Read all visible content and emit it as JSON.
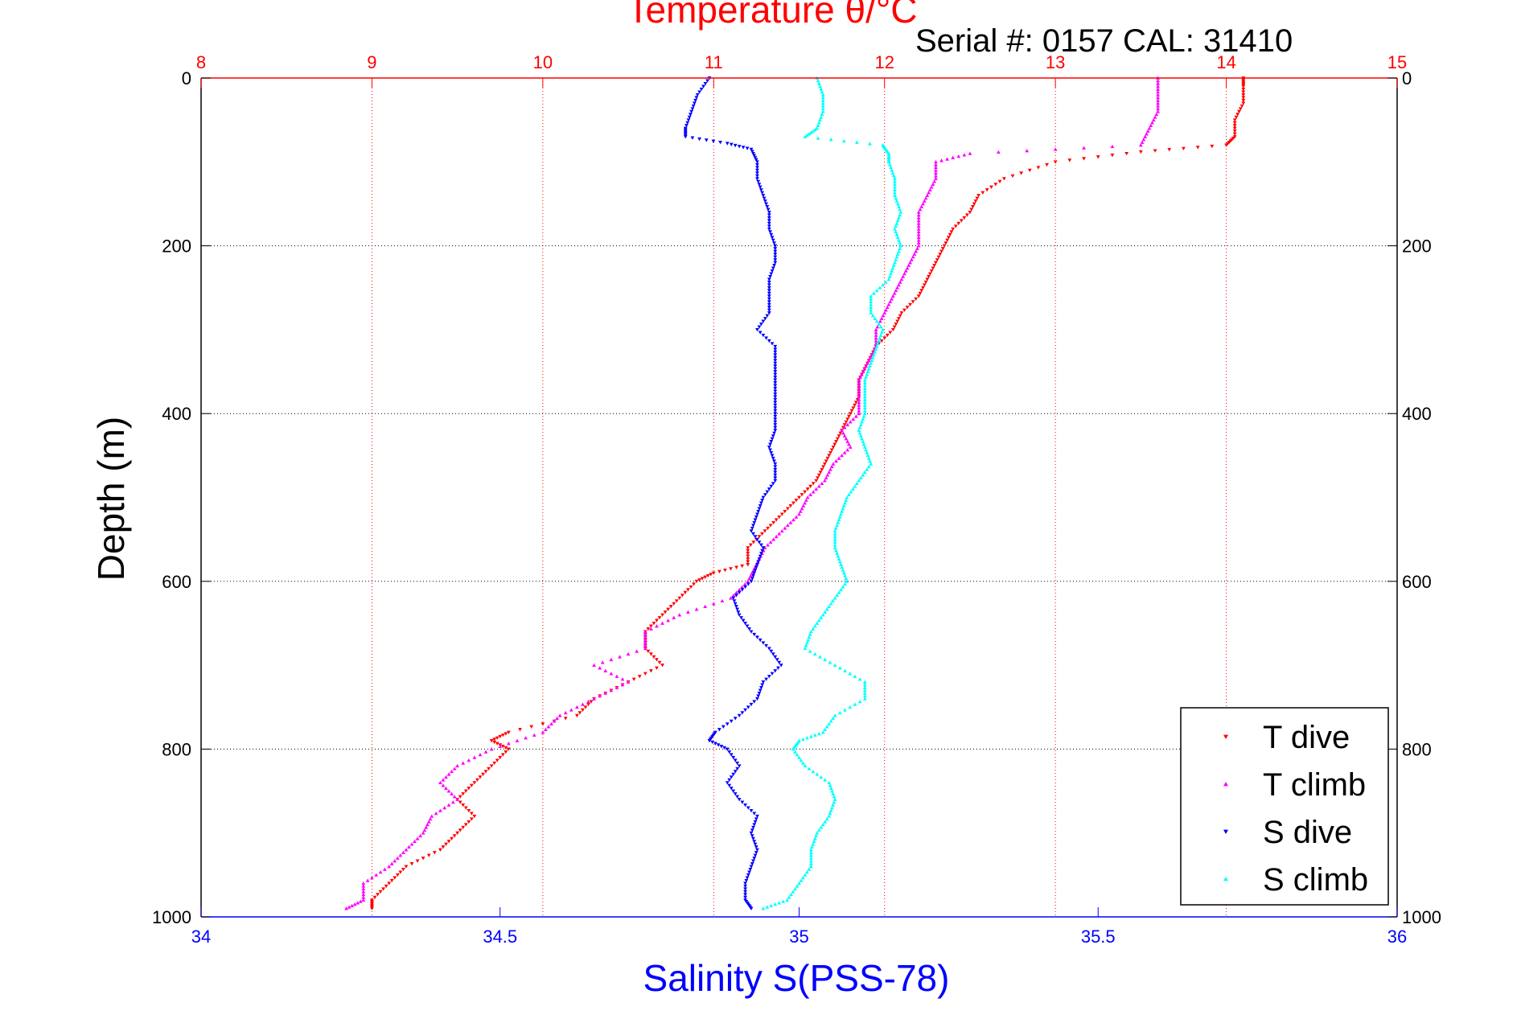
{
  "chart_data": {
    "type": "scatter",
    "title": "Temperature θ/°C",
    "subtitle": "Serial #: 0157  CAL: 31410",
    "xlabel": "Salinity S(PSS-78)",
    "ylabel": "Depth (m)",
    "x_top": {
      "label": "Temperature θ/°C",
      "lim": [
        8,
        15
      ],
      "ticks": [
        8,
        9,
        10,
        11,
        12,
        13,
        14,
        15
      ]
    },
    "x_bottom": {
      "label": "Salinity S(PSS-78)",
      "lim": [
        34,
        36
      ],
      "ticks": [
        "34",
        "34.5",
        "35",
        "35.5",
        "36"
      ]
    },
    "y": {
      "label": "Depth (m)",
      "lim": [
        0,
        1000
      ],
      "reversed": true,
      "ticks": [
        0,
        200,
        400,
        600,
        800,
        1000
      ]
    },
    "grid": true,
    "legend": {
      "placement": "bottom-right"
    },
    "colors": {
      "temp_axis": "#ff0000",
      "sal_axis": "#0000ff",
      "grid_temp": "#ff0000",
      "grid_depth": "#000000"
    },
    "series": [
      {
        "name": "T dive",
        "axis": "temperature",
        "color": "#ff0000",
        "marker": "triangle-down",
        "points": [
          [
            14.1,
            0
          ],
          [
            14.1,
            10
          ],
          [
            14.1,
            30
          ],
          [
            14.05,
            50
          ],
          [
            14.05,
            70
          ],
          [
            14.0,
            80
          ],
          [
            13.5,
            88
          ],
          [
            13.0,
            100
          ],
          [
            12.7,
            120
          ],
          [
            12.55,
            140
          ],
          [
            12.5,
            160
          ],
          [
            12.4,
            180
          ],
          [
            12.35,
            200
          ],
          [
            12.3,
            220
          ],
          [
            12.25,
            240
          ],
          [
            12.2,
            260
          ],
          [
            12.1,
            280
          ],
          [
            12.05,
            300
          ],
          [
            11.95,
            320
          ],
          [
            11.9,
            340
          ],
          [
            11.85,
            360
          ],
          [
            11.85,
            380
          ],
          [
            11.8,
            400
          ],
          [
            11.75,
            420
          ],
          [
            11.7,
            440
          ],
          [
            11.65,
            460
          ],
          [
            11.6,
            480
          ],
          [
            11.5,
            500
          ],
          [
            11.4,
            520
          ],
          [
            11.3,
            540
          ],
          [
            11.2,
            560
          ],
          [
            11.2,
            580
          ],
          [
            11.0,
            590
          ],
          [
            10.9,
            600
          ],
          [
            10.8,
            620
          ],
          [
            10.7,
            640
          ],
          [
            10.6,
            660
          ],
          [
            10.6,
            680
          ],
          [
            10.7,
            700
          ],
          [
            10.5,
            720
          ],
          [
            10.3,
            740
          ],
          [
            10.2,
            760
          ],
          [
            9.8,
            780
          ],
          [
            9.7,
            790
          ],
          [
            9.8,
            800
          ],
          [
            9.7,
            820
          ],
          [
            9.6,
            840
          ],
          [
            9.5,
            860
          ],
          [
            9.6,
            880
          ],
          [
            9.5,
            900
          ],
          [
            9.4,
            920
          ],
          [
            9.2,
            940
          ],
          [
            9.1,
            960
          ],
          [
            9.0,
            980
          ],
          [
            9.0,
            990
          ]
        ]
      },
      {
        "name": "T climb",
        "axis": "temperature",
        "color": "#ff00ff",
        "marker": "triangle-up",
        "points": [
          [
            13.6,
            0
          ],
          [
            13.6,
            20
          ],
          [
            13.6,
            40
          ],
          [
            13.55,
            60
          ],
          [
            13.5,
            80
          ],
          [
            12.5,
            90
          ],
          [
            12.3,
            100
          ],
          [
            12.3,
            120
          ],
          [
            12.25,
            140
          ],
          [
            12.2,
            160
          ],
          [
            12.2,
            180
          ],
          [
            12.2,
            200
          ],
          [
            12.15,
            220
          ],
          [
            12.1,
            240
          ],
          [
            12.05,
            260
          ],
          [
            12.0,
            280
          ],
          [
            11.95,
            300
          ],
          [
            11.95,
            320
          ],
          [
            11.9,
            340
          ],
          [
            11.85,
            360
          ],
          [
            11.85,
            380
          ],
          [
            11.85,
            400
          ],
          [
            11.75,
            420
          ],
          [
            11.8,
            440
          ],
          [
            11.7,
            460
          ],
          [
            11.65,
            480
          ],
          [
            11.55,
            500
          ],
          [
            11.5,
            520
          ],
          [
            11.4,
            540
          ],
          [
            11.3,
            560
          ],
          [
            11.25,
            580
          ],
          [
            11.2,
            600
          ],
          [
            11.1,
            620
          ],
          [
            10.8,
            640
          ],
          [
            10.6,
            660
          ],
          [
            10.6,
            680
          ],
          [
            10.3,
            700
          ],
          [
            10.5,
            720
          ],
          [
            10.3,
            740
          ],
          [
            10.1,
            760
          ],
          [
            10.0,
            780
          ],
          [
            9.7,
            800
          ],
          [
            9.5,
            820
          ],
          [
            9.4,
            840
          ],
          [
            9.5,
            860
          ],
          [
            9.35,
            880
          ],
          [
            9.3,
            900
          ],
          [
            9.2,
            920
          ],
          [
            9.1,
            940
          ],
          [
            8.95,
            960
          ],
          [
            8.95,
            980
          ],
          [
            8.85,
            990
          ]
        ]
      },
      {
        "name": "S dive",
        "axis": "salinity",
        "color": "#0000ff",
        "marker": "triangle-down",
        "points": [
          [
            34.85,
            0
          ],
          [
            34.83,
            20
          ],
          [
            34.82,
            40
          ],
          [
            34.81,
            60
          ],
          [
            34.81,
            70
          ],
          [
            34.88,
            78
          ],
          [
            34.92,
            85
          ],
          [
            34.93,
            100
          ],
          [
            34.93,
            120
          ],
          [
            34.94,
            140
          ],
          [
            34.95,
            160
          ],
          [
            34.95,
            180
          ],
          [
            34.96,
            200
          ],
          [
            34.96,
            220
          ],
          [
            34.95,
            240
          ],
          [
            34.95,
            260
          ],
          [
            34.95,
            280
          ],
          [
            34.93,
            300
          ],
          [
            34.96,
            320
          ],
          [
            34.96,
            340
          ],
          [
            34.96,
            360
          ],
          [
            34.96,
            380
          ],
          [
            34.96,
            400
          ],
          [
            34.96,
            420
          ],
          [
            34.95,
            440
          ],
          [
            34.96,
            460
          ],
          [
            34.96,
            480
          ],
          [
            34.94,
            500
          ],
          [
            34.93,
            520
          ],
          [
            34.92,
            540
          ],
          [
            34.94,
            560
          ],
          [
            34.93,
            580
          ],
          [
            34.92,
            600
          ],
          [
            34.89,
            620
          ],
          [
            34.9,
            640
          ],
          [
            34.92,
            660
          ],
          [
            34.95,
            680
          ],
          [
            34.97,
            700
          ],
          [
            34.94,
            720
          ],
          [
            34.93,
            740
          ],
          [
            34.9,
            760
          ],
          [
            34.86,
            780
          ],
          [
            34.85,
            790
          ],
          [
            34.88,
            800
          ],
          [
            34.9,
            820
          ],
          [
            34.88,
            840
          ],
          [
            34.9,
            860
          ],
          [
            34.93,
            880
          ],
          [
            34.92,
            900
          ],
          [
            34.93,
            920
          ],
          [
            34.92,
            940
          ],
          [
            34.91,
            960
          ],
          [
            34.91,
            980
          ],
          [
            34.92,
            990
          ]
        ]
      },
      {
        "name": "S climb",
        "axis": "salinity",
        "color": "#00ffff",
        "marker": "triangle-up",
        "points": [
          [
            35.03,
            0
          ],
          [
            35.04,
            20
          ],
          [
            35.04,
            40
          ],
          [
            35.03,
            60
          ],
          [
            35.01,
            70
          ],
          [
            35.14,
            80
          ],
          [
            35.15,
            90
          ],
          [
            35.15,
            100
          ],
          [
            35.16,
            120
          ],
          [
            35.16,
            140
          ],
          [
            35.17,
            160
          ],
          [
            35.16,
            180
          ],
          [
            35.17,
            200
          ],
          [
            35.16,
            220
          ],
          [
            35.15,
            240
          ],
          [
            35.12,
            260
          ],
          [
            35.12,
            280
          ],
          [
            35.14,
            300
          ],
          [
            35.13,
            320
          ],
          [
            35.12,
            340
          ],
          [
            35.11,
            360
          ],
          [
            35.11,
            380
          ],
          [
            35.11,
            400
          ],
          [
            35.1,
            420
          ],
          [
            35.11,
            440
          ],
          [
            35.12,
            460
          ],
          [
            35.1,
            480
          ],
          [
            35.08,
            500
          ],
          [
            35.07,
            520
          ],
          [
            35.06,
            540
          ],
          [
            35.06,
            560
          ],
          [
            35.07,
            580
          ],
          [
            35.08,
            600
          ],
          [
            35.06,
            620
          ],
          [
            35.04,
            640
          ],
          [
            35.02,
            660
          ],
          [
            35.01,
            680
          ],
          [
            35.06,
            700
          ],
          [
            35.11,
            720
          ],
          [
            35.11,
            740
          ],
          [
            35.06,
            760
          ],
          [
            35.04,
            780
          ],
          [
            35.0,
            790
          ],
          [
            34.99,
            800
          ],
          [
            35.01,
            820
          ],
          [
            35.05,
            840
          ],
          [
            35.06,
            860
          ],
          [
            35.05,
            880
          ],
          [
            35.03,
            900
          ],
          [
            35.02,
            920
          ],
          [
            35.02,
            940
          ],
          [
            35.0,
            960
          ],
          [
            34.98,
            980
          ],
          [
            34.94,
            990
          ]
        ]
      }
    ]
  }
}
